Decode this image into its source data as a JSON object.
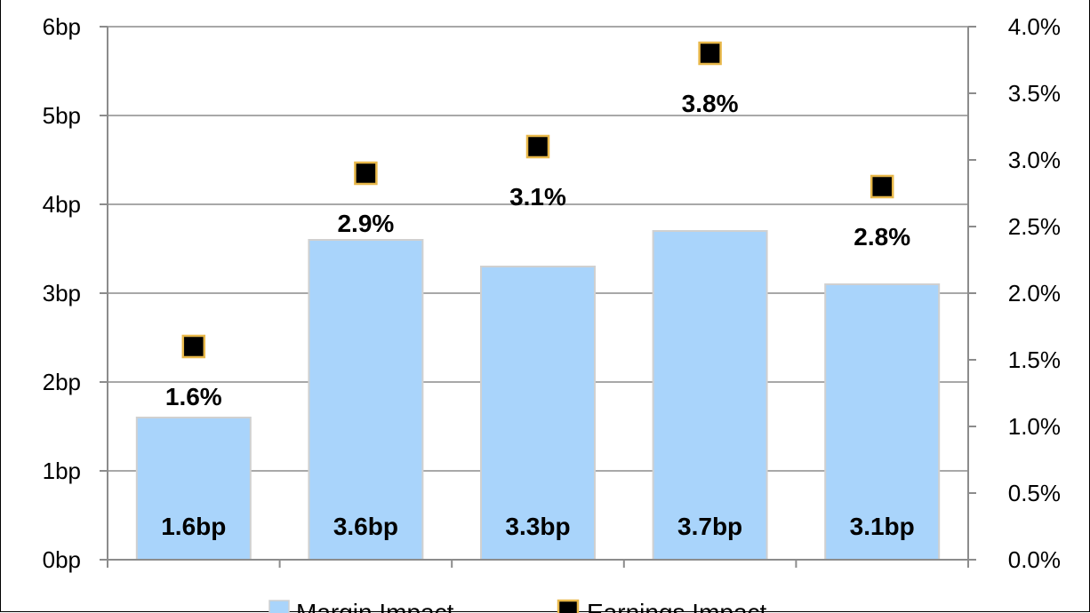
{
  "chart_data": {
    "type": "bar",
    "categories": [
      "",
      "",
      "",
      "",
      ""
    ],
    "series": [
      {
        "name": "Margin Impact",
        "axis": "left",
        "values": [
          1.6,
          3.6,
          3.3,
          3.7,
          3.1
        ],
        "labels": [
          "1.6bp",
          "3.6bp",
          "3.3bp",
          "3.7bp",
          "3.1bp"
        ],
        "color": "#a9d4fb"
      },
      {
        "name": "Earnings Impact",
        "axis": "right",
        "type": "scatter",
        "values": [
          1.6,
          2.9,
          3.1,
          3.8,
          2.8
        ],
        "labels": [
          "1.6%",
          "2.9%",
          "3.1%",
          "3.8%",
          "2.8%"
        ],
        "color": "#000000",
        "edge_color": "#e8b84a"
      }
    ],
    "left_axis": {
      "ylim": [
        0,
        6
      ],
      "ticks": [
        0,
        1,
        2,
        3,
        4,
        5,
        6
      ],
      "tick_labels": [
        "0bp",
        "1bp",
        "2bp",
        "3bp",
        "4bp",
        "5bp",
        "6bp"
      ]
    },
    "right_axis": {
      "ylim": [
        0,
        4
      ],
      "ticks": [
        0,
        0.5,
        1,
        1.5,
        2,
        2.5,
        3,
        3.5,
        4
      ],
      "tick_labels": [
        "0.0%",
        "0.5%",
        "1.0%",
        "1.5%",
        "2.0%",
        "2.5%",
        "3.0%",
        "3.5%",
        "4.0%"
      ]
    },
    "grid": true,
    "legend": "bottom",
    "title": "",
    "xlabel": "",
    "ylabel": ""
  }
}
